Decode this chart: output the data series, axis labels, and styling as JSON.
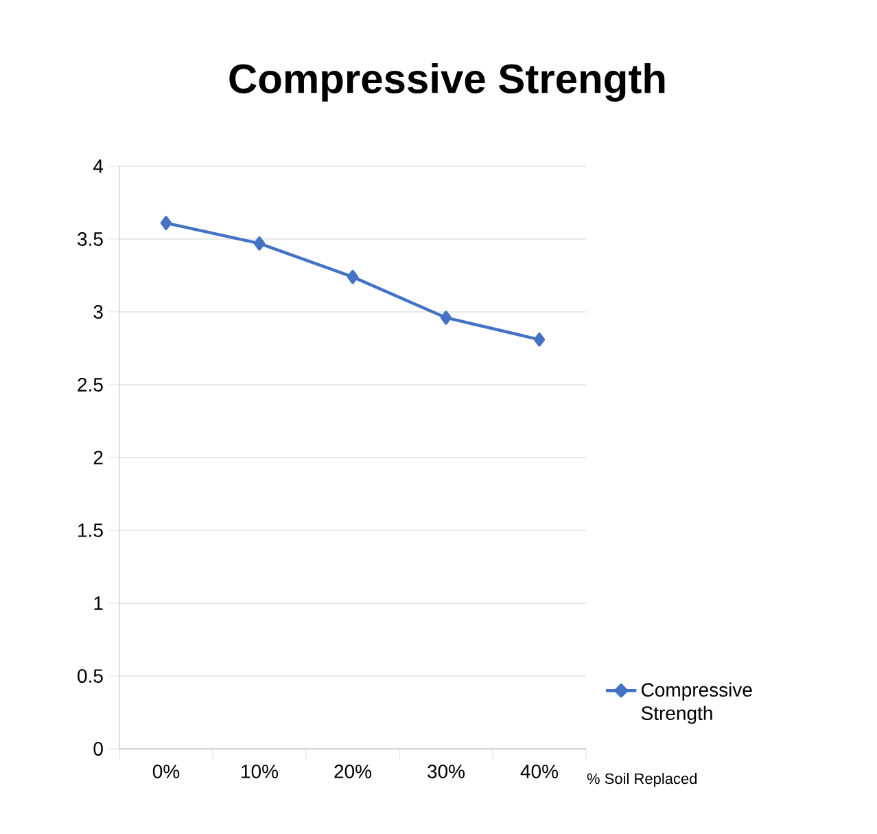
{
  "chart_data": {
    "type": "line",
    "title": "Compressive Strength",
    "xlabel": "% Soil Replaced",
    "categories": [
      "0%",
      "10%",
      "20%",
      "30%",
      "40%"
    ],
    "series": [
      {
        "name": "Compressive Strength",
        "color": "#4472c4",
        "values": [
          3.61,
          3.47,
          3.24,
          2.96,
          2.81
        ]
      }
    ],
    "ylim": [
      0,
      4
    ],
    "yticks": [
      0,
      0.5,
      1,
      1.5,
      2,
      2.5,
      3,
      3.5,
      4
    ],
    "grid": "y",
    "legend": "right",
    "marker": "diamond",
    "line_style": "solid"
  }
}
